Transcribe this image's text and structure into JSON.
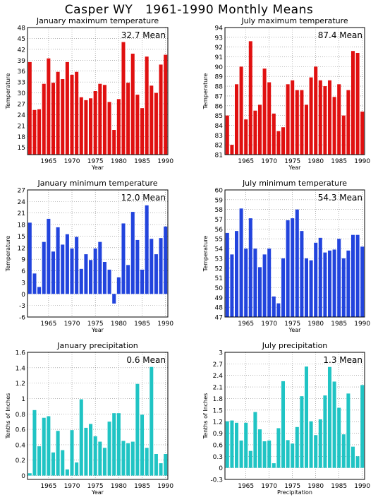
{
  "page_title": "Casper WY   1961-1990 Monthly Means",
  "colors": {
    "red": "#e01010",
    "blue": "#2244dd",
    "cyan": "#20c4c4",
    "grid": "#888888"
  },
  "chart_data": [
    {
      "type": "bar",
      "title": "January maximum temperature",
      "ylabel": "Temperature",
      "xlabel": "Year",
      "mean_label": "32.7 Mean",
      "color": "red",
      "ylim": [
        13,
        48
      ],
      "yticks": [
        15,
        18,
        21,
        24,
        27,
        30,
        33,
        36,
        39,
        42,
        45,
        48
      ],
      "yticklabels": [
        "15",
        "18",
        "21",
        "24",
        "27",
        "30",
        "33",
        "36",
        "39",
        "42",
        "45",
        "48"
      ],
      "xticks": [
        1965,
        1970,
        1975,
        1980,
        1985,
        1990
      ],
      "x": [
        1961,
        1962,
        1963,
        1964,
        1965,
        1966,
        1967,
        1968,
        1969,
        1970,
        1971,
        1972,
        1973,
        1974,
        1975,
        1976,
        1977,
        1978,
        1979,
        1980,
        1981,
        1982,
        1983,
        1984,
        1985,
        1986,
        1987,
        1988,
        1989,
        1990
      ],
      "values": [
        38.5,
        25.3,
        25.5,
        32.5,
        39.5,
        32.8,
        35.8,
        33.8,
        38.5,
        35.0,
        35.8,
        28.8,
        28.0,
        28.5,
        30.5,
        32.5,
        32.2,
        27.5,
        19.8,
        28.3,
        44.0,
        32.8,
        40.8,
        29.5,
        25.8,
        40.0,
        32.0,
        30.0,
        37.8,
        40.5
      ]
    },
    {
      "type": "bar",
      "title": "July maximum temperature",
      "ylabel": "Temperature",
      "xlabel": "Year",
      "mean_label": "87.4 Mean",
      "color": "red",
      "ylim": [
        81,
        94
      ],
      "yticks": [
        81,
        82,
        83,
        84,
        85,
        86,
        87,
        88,
        89,
        90,
        91,
        92,
        93,
        94
      ],
      "yticklabels": [
        "81",
        "82",
        "83",
        "84",
        "85",
        "86",
        "87",
        "88",
        "89",
        "90",
        "91",
        "92",
        "93",
        "94"
      ],
      "xticks": [
        1965,
        1970,
        1975,
        1980,
        1985,
        1990
      ],
      "x": [
        1961,
        1962,
        1963,
        1964,
        1965,
        1966,
        1967,
        1968,
        1969,
        1970,
        1971,
        1972,
        1973,
        1974,
        1975,
        1976,
        1977,
        1978,
        1979,
        1980,
        1981,
        1982,
        1983,
        1984,
        1985,
        1986,
        1987,
        1988,
        1989,
        1990
      ],
      "values": [
        85.0,
        82.0,
        88.2,
        90.0,
        84.6,
        92.6,
        85.5,
        86.1,
        89.8,
        88.4,
        85.2,
        83.4,
        83.8,
        88.2,
        88.6,
        87.6,
        87.6,
        86.1,
        88.9,
        90.0,
        88.6,
        88.0,
        88.6,
        86.9,
        88.2,
        85.0,
        87.6,
        91.6,
        91.4,
        85.4
      ]
    },
    {
      "type": "bar",
      "title": "January minimum temperature",
      "ylabel": "Temperature",
      "xlabel": "Year",
      "mean_label": "12.0 Mean",
      "color": "blue",
      "ylim": [
        -6,
        27
      ],
      "yticks": [
        -6,
        -3,
        0,
        3,
        6,
        9,
        12,
        15,
        18,
        21,
        24,
        27
      ],
      "yticklabels": [
        "-6",
        "-3",
        "0",
        "3",
        "6",
        "9",
        "12",
        "15",
        "18",
        "21",
        "24",
        "27"
      ],
      "xticks": [
        1965,
        1970,
        1975,
        1980,
        1985,
        1990
      ],
      "x": [
        1961,
        1962,
        1963,
        1964,
        1965,
        1966,
        1967,
        1968,
        1969,
        1970,
        1971,
        1972,
        1973,
        1974,
        1975,
        1976,
        1977,
        1978,
        1979,
        1980,
        1981,
        1982,
        1983,
        1984,
        1985,
        1986,
        1987,
        1988,
        1989,
        1990
      ],
      "values": [
        18.5,
        5.3,
        1.8,
        13.5,
        19.5,
        11.0,
        17.3,
        12.8,
        15.5,
        11.8,
        14.8,
        6.5,
        10.3,
        8.8,
        11.8,
        13.5,
        8.3,
        6.3,
        -2.5,
        4.3,
        18.3,
        7.5,
        21.3,
        14.0,
        6.3,
        23.0,
        14.3,
        10.3,
        14.5,
        17.5
      ]
    },
    {
      "type": "bar",
      "title": "July minimum temperature",
      "ylabel": "Temperature",
      "xlabel": "Year",
      "mean_label": "54.3 Mean",
      "color": "blue",
      "ylim": [
        47,
        60
      ],
      "yticks": [
        47,
        48,
        49,
        50,
        51,
        52,
        53,
        54,
        55,
        56,
        57,
        58,
        59,
        60
      ],
      "yticklabels": [
        "47",
        "48",
        "49",
        "50",
        "51",
        "52",
        "53",
        "54",
        "55",
        "56",
        "57",
        "58",
        "59",
        "60"
      ],
      "xticks": [
        1965,
        1970,
        1975,
        1980,
        1985,
        1990
      ],
      "x": [
        1961,
        1962,
        1963,
        1964,
        1965,
        1966,
        1967,
        1968,
        1969,
        1970,
        1971,
        1972,
        1973,
        1974,
        1975,
        1976,
        1977,
        1978,
        1979,
        1980,
        1981,
        1982,
        1983,
        1984,
        1985,
        1986,
        1987,
        1988,
        1989,
        1990
      ],
      "values": [
        55.6,
        53.4,
        55.8,
        58.1,
        54.0,
        57.1,
        54.0,
        52.1,
        53.4,
        54.0,
        49.1,
        48.4,
        53.0,
        56.9,
        57.1,
        58.0,
        55.8,
        53.0,
        52.8,
        54.6,
        55.1,
        53.6,
        53.8,
        53.9,
        55.0,
        53.0,
        53.8,
        55.4,
        55.4,
        54.2
      ]
    },
    {
      "type": "bar",
      "title": "January precipitation",
      "ylabel": "Tenths of Inches",
      "xlabel": "Year",
      "mean_label": "0.6 Mean",
      "color": "cyan",
      "ylim": [
        -0.05,
        1.6
      ],
      "yticks": [
        0,
        0.2,
        0.4,
        0.6,
        0.8,
        1.0,
        1.2,
        1.4,
        1.6
      ],
      "yticklabels": [
        "0",
        "0.2",
        "0.4",
        "0.6",
        "0.8",
        "1",
        "1.2",
        "1.4",
        "1.6"
      ],
      "xticks": [
        1965,
        1970,
        1975,
        1980,
        1985,
        1990
      ],
      "x": [
        1961,
        1962,
        1963,
        1964,
        1965,
        1966,
        1967,
        1968,
        1969,
        1970,
        1971,
        1972,
        1973,
        1974,
        1975,
        1976,
        1977,
        1978,
        1979,
        1980,
        1981,
        1982,
        1983,
        1984,
        1985,
        1986,
        1987,
        1988,
        1989,
        1990
      ],
      "values": [
        0.03,
        0.85,
        0.38,
        0.75,
        0.77,
        0.3,
        0.58,
        0.33,
        0.08,
        0.59,
        0.17,
        0.99,
        0.62,
        0.67,
        0.51,
        0.44,
        0.36,
        0.7,
        0.81,
        0.81,
        0.45,
        0.42,
        0.44,
        1.19,
        0.79,
        0.36,
        1.41,
        0.28,
        0.16,
        0.28
      ]
    },
    {
      "type": "bar",
      "title": "July precipitation",
      "ylabel": "Tenths of Inches",
      "xlabel": "Precipitation",
      "mean_label": "1.3 Mean",
      "color": "cyan",
      "ylim": [
        -0.3,
        3.0
      ],
      "yticks": [
        -0.3,
        0,
        0.3,
        0.6,
        0.9,
        1.2,
        1.5,
        1.8,
        2.1,
        2.4,
        2.7,
        3.0
      ],
      "yticklabels": [
        "-0.3",
        "0",
        "0.3",
        "0.6",
        "0.9",
        "1.2",
        "1.5",
        "1.8",
        "2.1",
        "2.4",
        "2.7",
        "3"
      ],
      "xticks": [
        1965,
        1970,
        1975,
        1980,
        1985,
        1990
      ],
      "x": [
        1961,
        1962,
        1963,
        1964,
        1965,
        1966,
        1967,
        1968,
        1969,
        1970,
        1971,
        1972,
        1973,
        1974,
        1975,
        1976,
        1977,
        1978,
        1979,
        1980,
        1981,
        1982,
        1983,
        1984,
        1985,
        1986,
        1987,
        1988,
        1989,
        1990
      ],
      "values": [
        1.21,
        1.23,
        1.17,
        0.71,
        1.17,
        0.44,
        1.45,
        1.0,
        0.69,
        0.71,
        0.12,
        1.03,
        2.25,
        0.72,
        0.63,
        1.06,
        1.86,
        2.63,
        1.21,
        0.85,
        1.26,
        1.88,
        2.62,
        2.24,
        1.56,
        0.87,
        1.93,
        0.55,
        0.3,
        2.15
      ]
    }
  ]
}
